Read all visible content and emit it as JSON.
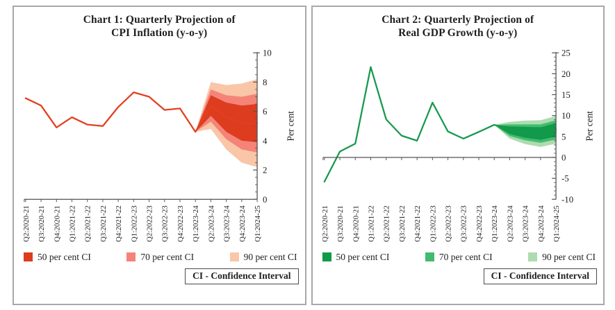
{
  "page": {
    "footnote": "CI - Confidence Interval"
  },
  "chart_data": [
    {
      "type": "fan-line",
      "title_line1": "Chart 1: Quarterly Projection of",
      "title_line2": "CPI Inflation (y-o-y)",
      "ylabel": "Per cent",
      "ylim": [
        0,
        10
      ],
      "yticks": [
        0,
        2,
        4,
        6,
        8,
        10
      ],
      "ytick_minor_step": 0.5,
      "categories": [
        "Q2:2020-21",
        "Q3:2020-21",
        "Q4:2020-21",
        "Q1:2021-22",
        "Q2:2021-22",
        "Q3:2021-22",
        "Q4:2021-22",
        "Q1:2022-23",
        "Q2:2022-23",
        "Q3:2022-23",
        "Q4:2022-23",
        "Q1:2023-24",
        "Q2:2023-24",
        "Q3:2023-24",
        "Q4:2023-24",
        "Q1:2024-25"
      ],
      "values": [
        6.9,
        6.4,
        4.9,
        5.6,
        5.1,
        5.0,
        6.3,
        7.3,
        7.0,
        6.1,
        6.2,
        4.6,
        6.4,
        5.6,
        5.2,
        5.2
      ],
      "projection_start_index": 11,
      "line_color": "#e2401f",
      "fan": {
        "start_index": 11,
        "bands": [
          {
            "label": "50 per cent CI",
            "color": "#dd3c1e",
            "upper": [
              7.1,
              6.6,
              6.4,
              6.5
            ],
            "lower": [
              5.7,
              4.6,
              4.0,
              3.9
            ]
          },
          {
            "label": "70 per cent CI",
            "color": "#f58378",
            "upper": [
              7.5,
              7.1,
              7.0,
              7.2
            ],
            "lower": [
              5.3,
              4.1,
              3.4,
              3.2
            ]
          },
          {
            "label": "90 per cent CI",
            "color": "#f9c6a8",
            "upper": [
              8.0,
              7.8,
              7.9,
              8.2
            ],
            "lower": [
              4.8,
              3.4,
              2.5,
              2.2
            ]
          }
        ]
      },
      "footnote": "CI - Confidence Interval"
    },
    {
      "type": "fan-line",
      "title_line1": "Chart 2: Quarterly Projection of",
      "title_line2": "Real GDP Growth (y-o-y)",
      "ylabel": "Per cent",
      "ylim": [
        -10,
        25
      ],
      "yticks": [
        -10,
        -5,
        0,
        5,
        10,
        15,
        20,
        25
      ],
      "ytick_minor_step": 1,
      "categories": [
        "Q2:2020-21",
        "Q3:2020-21",
        "Q4:2020-21",
        "Q1:2021-22",
        "Q2:2021-22",
        "Q3:2021-22",
        "Q4:2021-22",
        "Q1:2022-23",
        "Q2:2022-23",
        "Q3:2022-23",
        "Q4:2022-23",
        "Q1:2023-24",
        "Q2:2023-24",
        "Q3:2023-24",
        "Q4:2023-24",
        "Q1:2024-25"
      ],
      "values": [
        -5.8,
        1.4,
        3.3,
        21.6,
        9.1,
        5.2,
        4.0,
        13.1,
        6.2,
        4.5,
        6.1,
        7.8,
        6.5,
        6.0,
        5.7,
        6.6
      ],
      "projection_start_index": 11,
      "line_color": "#17994d",
      "fan": {
        "start_index": 11,
        "bands": [
          {
            "label": "50 per cent CI",
            "color": "#109a49",
            "upper": [
              7.4,
              7.3,
              7.2,
              8.2
            ],
            "lower": [
              5.6,
              4.7,
              4.2,
              5.0
            ]
          },
          {
            "label": "70 per cent CI",
            "color": "#41bc6e",
            "upper": [
              7.9,
              7.9,
              7.9,
              8.9
            ],
            "lower": [
              5.1,
              4.1,
              3.5,
              4.3
            ]
          },
          {
            "label": "90 per cent CI",
            "color": "#aedbb0",
            "upper": [
              8.5,
              8.8,
              8.9,
              9.9
            ],
            "lower": [
              4.5,
              3.2,
              2.5,
              3.3
            ]
          }
        ]
      },
      "footnote": "CI - Confidence Interval"
    }
  ]
}
